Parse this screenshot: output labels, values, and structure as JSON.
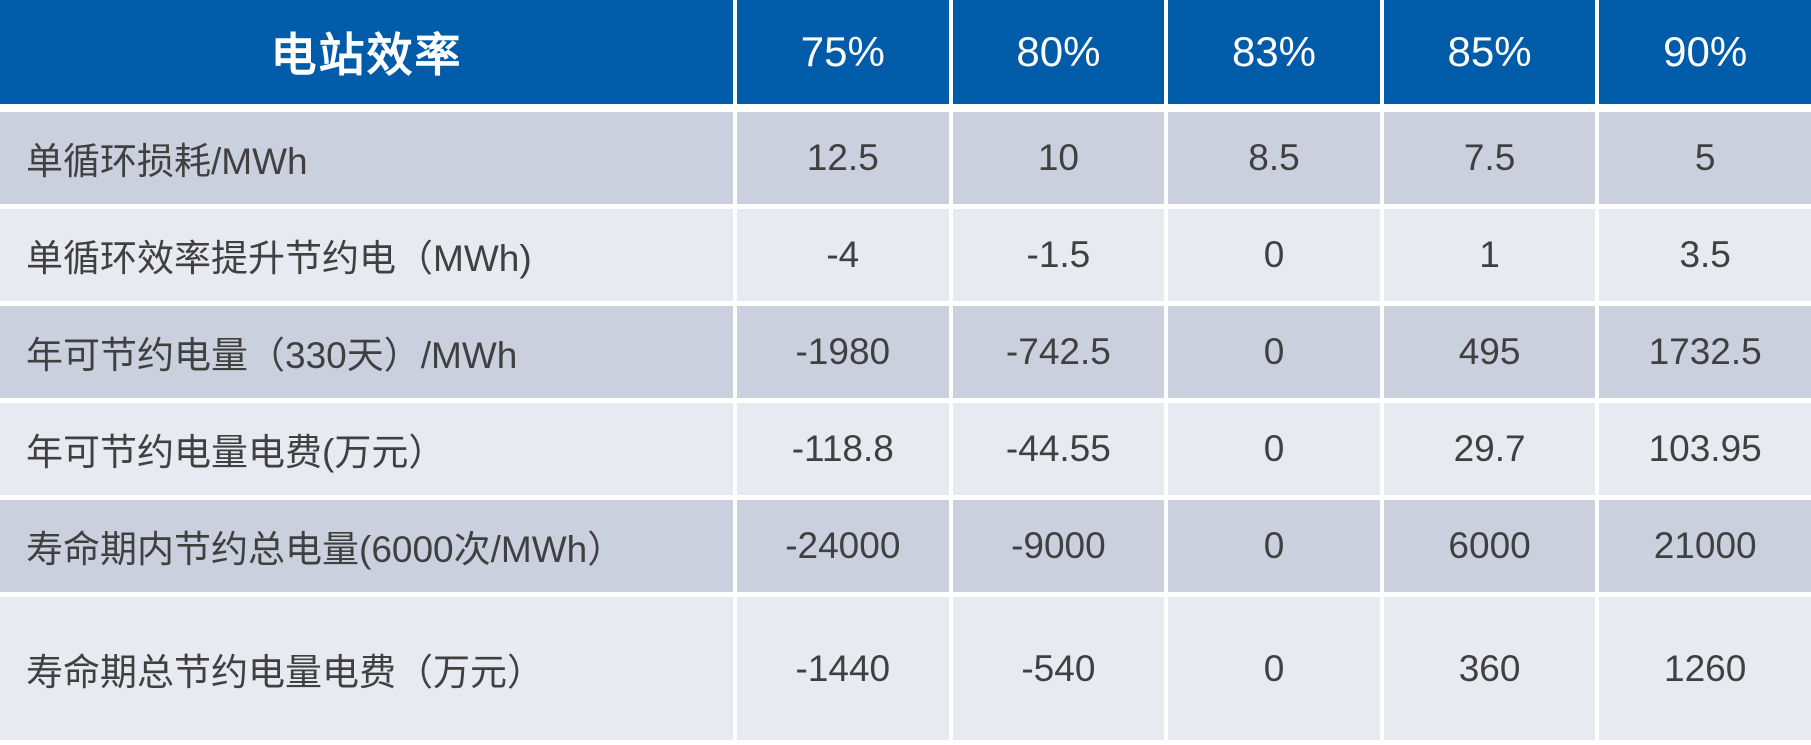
{
  "table": {
    "header": {
      "label": "电站效率",
      "columns": [
        "75%",
        "80%",
        "83%",
        "85%",
        "90%"
      ]
    },
    "rows": [
      {
        "label": "单循环损耗/MWh",
        "values": [
          "12.5",
          "10",
          "8.5",
          "7.5",
          "5"
        ]
      },
      {
        "label": "单循环效率提升节约电（MWh)",
        "values": [
          "-4",
          "-1.5",
          "0",
          "1",
          "3.5"
        ]
      },
      {
        "label": "年可节约电量（330天）/MWh",
        "values": [
          "-1980",
          "-742.5",
          "0",
          "495",
          "1732.5"
        ]
      },
      {
        "label": "年可节约电量电费(万元）",
        "values": [
          "-118.8",
          "-44.55",
          "0",
          "29.7",
          "103.95"
        ]
      },
      {
        "label": "寿命期内节约总电量(6000次/MWh）",
        "values": [
          "-24000",
          "-9000",
          "0",
          "6000",
          "21000"
        ]
      },
      {
        "label": "寿命期总节约电量电费（万元）",
        "values": [
          "-1440",
          "-540",
          "0",
          "360",
          "1260"
        ]
      }
    ],
    "colors": {
      "header_bg": "#005BA9",
      "header_text": "#FFFFFF",
      "row_dark": "#CBD0DF",
      "row_light": "#E8EAF2",
      "body_text": "#404040",
      "separator": "#FFFFFF"
    }
  },
  "chart_data": {
    "type": "table",
    "title": "电站效率",
    "categories": [
      "75%",
      "80%",
      "83%",
      "85%",
      "90%"
    ],
    "series": [
      {
        "name": "单循环损耗/MWh",
        "values": [
          12.5,
          10,
          8.5,
          7.5,
          5
        ]
      },
      {
        "name": "单循环效率提升节约电（MWh)",
        "values": [
          -4,
          -1.5,
          0,
          1,
          3.5
        ]
      },
      {
        "name": "年可节约电量（330天）/MWh",
        "values": [
          -1980,
          -742.5,
          0,
          495,
          1732.5
        ]
      },
      {
        "name": "年可节约电量电费(万元）",
        "values": [
          -118.8,
          -44.55,
          0,
          29.7,
          103.95
        ]
      },
      {
        "name": "寿命期内节约总电量(6000次/MWh）",
        "values": [
          -24000,
          -9000,
          0,
          6000,
          21000
        ]
      },
      {
        "name": "寿命期总节约电量电费（万元）",
        "values": [
          -1440,
          -540,
          0,
          360,
          1260
        ]
      }
    ],
    "layout": {
      "header_row": "blue",
      "body_rows": "alternating lavender stripes",
      "grid": "white separators"
    }
  }
}
